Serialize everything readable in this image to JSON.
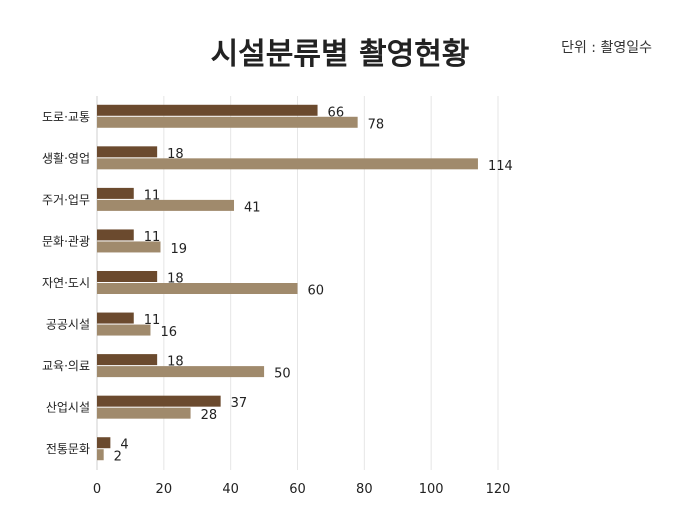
{
  "chart_data": {
    "type": "bar",
    "orientation": "horizontal",
    "title": "시설분류별 촬영현황",
    "unit_note": "단위 : 촬영일수",
    "categories": [
      "도로·교통",
      "생활·영업",
      "주거·업무",
      "문화·관광",
      "자연·도시",
      "공공시설",
      "교육·의료",
      "산업시설",
      "전통문화"
    ],
    "series": [
      {
        "values": [
          66,
          18,
          11,
          11,
          18,
          11,
          18,
          37,
          4
        ],
        "color": "#6b4a2e"
      },
      {
        "values": [
          78,
          114,
          41,
          19,
          60,
          16,
          50,
          28,
          2
        ],
        "color": "#a08a6c"
      }
    ],
    "xlim": [
      0,
      120
    ],
    "xticks": [
      0,
      20,
      40,
      60,
      80,
      100,
      120
    ],
    "grid": true,
    "legend": "none"
  }
}
